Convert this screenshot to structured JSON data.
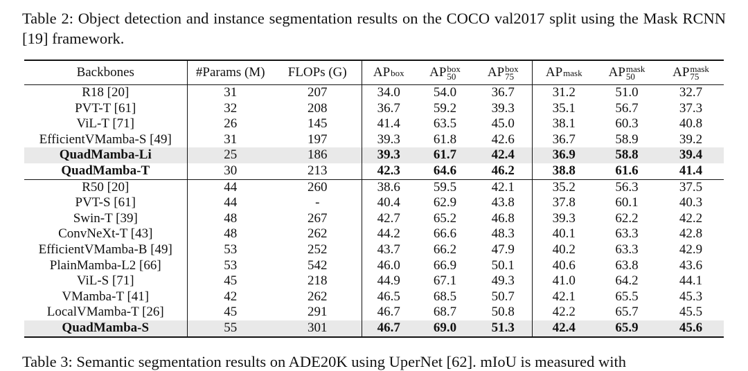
{
  "caption": {
    "label": "Table 2:",
    "text": "Object detection and instance segmentation results on the COCO val2017 split using the Mask RCNN [19] framework."
  },
  "table": {
    "header": [
      {
        "base": "Backbones"
      },
      {
        "base": "#Params (M)"
      },
      {
        "base": "FLOPs (G)"
      },
      {
        "base": "AP",
        "sup": "box"
      },
      {
        "base": "AP",
        "sup": "box",
        "sub": "50"
      },
      {
        "base": "AP",
        "sup": "box",
        "sub": "75"
      },
      {
        "base": "AP",
        "sup": "mask"
      },
      {
        "base": "AP",
        "sup": "mask",
        "sub": "50"
      },
      {
        "base": "AP",
        "sup": "mask",
        "sub": "75"
      }
    ],
    "bold_columns": [
      0,
      3,
      4,
      5,
      6,
      7,
      8
    ],
    "groups": [
      {
        "rows": [
          {
            "cells": [
              "R18 [20]",
              "31",
              "207",
              "34.0",
              "54.0",
              "36.7",
              "31.2",
              "51.0",
              "32.7"
            ]
          },
          {
            "cells": [
              "PVT-T [61]",
              "32",
              "208",
              "36.7",
              "59.2",
              "39.3",
              "35.1",
              "56.7",
              "37.3"
            ]
          },
          {
            "cells": [
              "ViL-T [71]",
              "26",
              "145",
              "41.4",
              "63.5",
              "45.0",
              "38.1",
              "60.3",
              "40.8"
            ]
          },
          {
            "cells": [
              "EfficientVMamba-S [49]",
              "31",
              "197",
              "39.3",
              "61.8",
              "42.6",
              "36.7",
              "58.9",
              "39.2"
            ]
          },
          {
            "cells": [
              "QuadMamba-Li",
              "25",
              "186",
              "39.3",
              "61.7",
              "42.4",
              "36.9",
              "58.8",
              "39.4"
            ],
            "bold": true,
            "shaded": true
          },
          {
            "cells": [
              "QuadMamba-T",
              "30",
              "213",
              "42.3",
              "64.6",
              "46.2",
              "38.8",
              "61.6",
              "41.4"
            ],
            "bold": true
          }
        ]
      },
      {
        "rows": [
          {
            "cells": [
              "R50 [20]",
              "44",
              "260",
              "38.6",
              "59.5",
              "42.1",
              "35.2",
              "56.3",
              "37.5"
            ]
          },
          {
            "cells": [
              "PVT-S [61]",
              "44",
              "-",
              "40.4",
              "62.9",
              "43.8",
              "37.8",
              "60.1",
              "40.3"
            ]
          },
          {
            "cells": [
              "Swin-T [39]",
              "48",
              "267",
              "42.7",
              "65.2",
              "46.8",
              "39.3",
              "62.2",
              "42.2"
            ]
          },
          {
            "cells": [
              "ConvNeXt-T [43]",
              "48",
              "262",
              "44.2",
              "66.6",
              "48.3",
              "40.1",
              "63.3",
              "42.8"
            ]
          },
          {
            "cells": [
              "EfficientVMamba-B [49]",
              "53",
              "252",
              "43.7",
              "66.2",
              "47.9",
              "40.2",
              "63.3",
              "42.9"
            ]
          },
          {
            "cells": [
              "PlainMamba-L2 [66]",
              "53",
              "542",
              "46.0",
              "66.9",
              "50.1",
              "40.6",
              "63.8",
              "43.6"
            ]
          },
          {
            "cells": [
              "ViL-S [71]",
              "45",
              "218",
              "44.9",
              "67.1",
              "49.3",
              "41.0",
              "64.2",
              "44.1"
            ]
          },
          {
            "cells": [
              "VMamba-T [41]",
              "42",
              "262",
              "46.5",
              "68.5",
              "50.7",
              "42.1",
              "65.5",
              "45.3"
            ]
          },
          {
            "cells": [
              "LocalVMamba-T [26]",
              "45",
              "291",
              "46.7",
              "68.7",
              "50.8",
              "42.2",
              "65.7",
              "45.5"
            ]
          },
          {
            "cells": [
              "QuadMamba-S",
              "55",
              "301",
              "46.7",
              "69.0",
              "51.3",
              "42.4",
              "65.9",
              "45.6"
            ],
            "bold": true,
            "shaded": true
          }
        ]
      }
    ]
  },
  "next_caption": "Table 3: Semantic segmentation results on ADE20K using UperNet [62]. mIoU is measured with"
}
